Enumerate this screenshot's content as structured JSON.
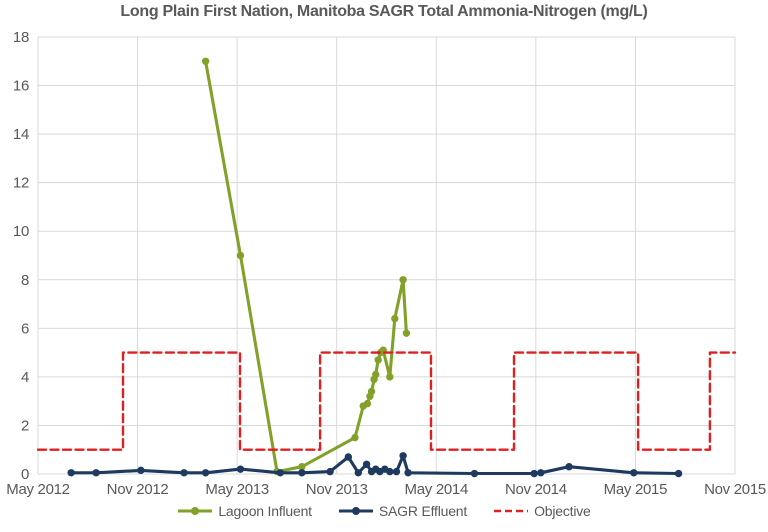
{
  "chart": {
    "title": "Long Plain First Nation, Manitoba SAGR Total Ammonia-Nitrogen (mg/L)"
  },
  "chart_data": {
    "type": "line",
    "title": "Long Plain First Nation, Manitoba SAGR Total Ammonia-Nitrogen (mg/L)",
    "xlabel": "",
    "ylabel": "",
    "x_axis": {
      "unit": "months since May 2012",
      "range": [
        0,
        42
      ],
      "tick_positions": [
        0,
        6,
        12,
        18,
        24,
        30,
        36,
        42
      ],
      "tick_labels": [
        "May 2012",
        "Nov 2012",
        "May 2013",
        "Nov 2013",
        "May 2014",
        "Nov 2014",
        "May 2015",
        "Nov 2015"
      ]
    },
    "y_axis": {
      "range": [
        0,
        18
      ],
      "tick_step": 2,
      "tick_values": [
        0,
        2,
        4,
        6,
        8,
        10,
        12,
        14,
        16,
        18
      ]
    },
    "grid": true,
    "grid_color": "#d9d9d9",
    "legend_position": "bottom",
    "text_color": "#595959",
    "series": [
      {
        "name": "Lagoon Influent",
        "color": "#82a12b",
        "style": "solid",
        "marker": "circle",
        "points": [
          [
            10.1,
            17
          ],
          [
            12.2,
            9
          ],
          [
            14.4,
            0.1
          ],
          [
            15.9,
            0.3
          ],
          [
            19.1,
            1.5
          ],
          [
            19.6,
            2.8
          ],
          [
            19.85,
            2.9
          ],
          [
            20.0,
            3.2
          ],
          [
            20.1,
            3.4
          ],
          [
            20.25,
            3.9
          ],
          [
            20.35,
            4.1
          ],
          [
            20.5,
            4.7
          ],
          [
            20.65,
            5.0
          ],
          [
            20.8,
            5.1
          ],
          [
            21.2,
            4.0
          ],
          [
            21.5,
            6.4
          ],
          [
            22.0,
            8.0
          ],
          [
            22.2,
            5.8
          ]
        ]
      },
      {
        "name": "SAGR Effluent",
        "color": "#1f3a5f",
        "style": "solid",
        "marker": "circle",
        "points": [
          [
            2.0,
            0.05
          ],
          [
            3.5,
            0.05
          ],
          [
            6.2,
            0.15
          ],
          [
            8.8,
            0.05
          ],
          [
            10.1,
            0.05
          ],
          [
            12.2,
            0.2
          ],
          [
            14.6,
            0.05
          ],
          [
            15.9,
            0.05
          ],
          [
            17.6,
            0.1
          ],
          [
            18.7,
            0.7
          ],
          [
            19.3,
            0.05
          ],
          [
            19.8,
            0.4
          ],
          [
            20.1,
            0.1
          ],
          [
            20.35,
            0.2
          ],
          [
            20.6,
            0.1
          ],
          [
            20.9,
            0.2
          ],
          [
            21.2,
            0.1
          ],
          [
            21.6,
            0.1
          ],
          [
            22.0,
            0.75
          ],
          [
            22.3,
            0.05
          ],
          [
            26.3,
            0.02
          ],
          [
            29.9,
            0.02
          ],
          [
            30.3,
            0.05
          ],
          [
            32.0,
            0.3
          ],
          [
            35.9,
            0.05
          ],
          [
            38.6,
            0.02
          ]
        ]
      },
      {
        "name": "Objective",
        "color": "#e02020",
        "style": "dashed",
        "marker": "none",
        "points": [
          [
            0,
            1
          ],
          [
            5.12,
            1
          ],
          [
            5.12,
            5
          ],
          [
            12.17,
            5
          ],
          [
            12.17,
            1
          ],
          [
            17.0,
            1
          ],
          [
            17.0,
            5
          ],
          [
            23.68,
            5
          ],
          [
            23.68,
            1
          ],
          [
            28.68,
            1
          ],
          [
            28.68,
            5
          ],
          [
            36.16,
            5
          ],
          [
            36.16,
            1
          ],
          [
            40.49,
            1
          ],
          [
            40.49,
            5
          ],
          [
            42,
            5
          ]
        ]
      }
    ]
  }
}
